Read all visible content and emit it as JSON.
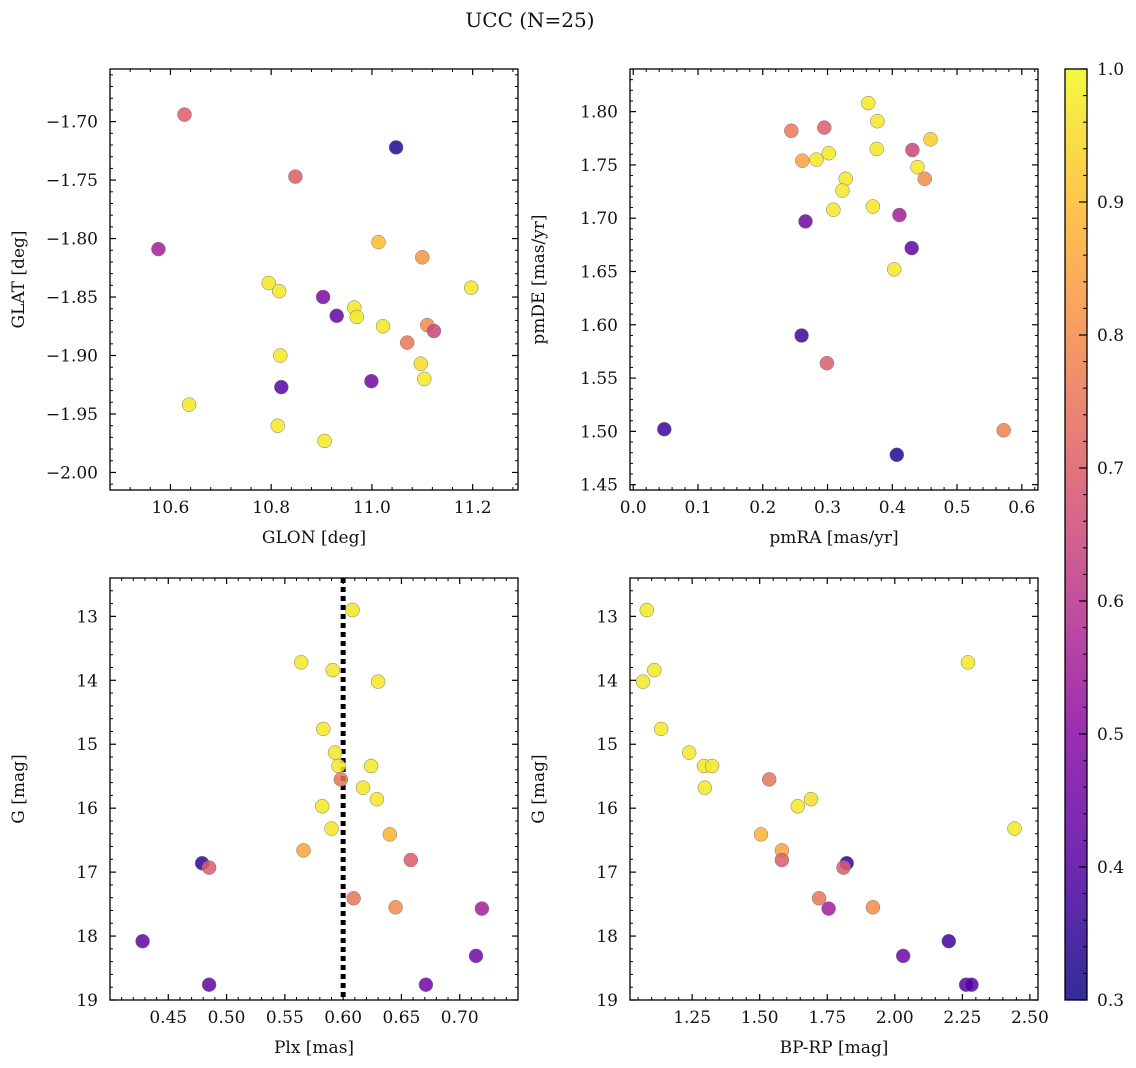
{
  "figure": {
    "title": "UCC (N=25)"
  },
  "colorbar": {
    "min": 0.3,
    "max": 1.0,
    "ticks": [
      0.3,
      0.4,
      0.5,
      0.6,
      0.7,
      0.8,
      0.9,
      1.0
    ],
    "tick_labels": [
      "0.3",
      "0.4",
      "0.5",
      "0.6",
      "0.7",
      "0.8",
      "0.9",
      "1.0"
    ],
    "colormap": "plasma"
  },
  "chart_data": [
    {
      "type": "scatter",
      "id": "glon-glat",
      "xlabel": "GLON [deg]",
      "ylabel": "GLAT [deg]",
      "xlim": [
        10.48,
        11.29
      ],
      "ylim": [
        -2.015,
        -1.655
      ],
      "y_inverted": false,
      "xticks": [
        10.6,
        10.8,
        11.0,
        11.2
      ],
      "xtick_labels": [
        "10.6",
        "10.8",
        "11.0",
        "11.2"
      ],
      "yticks": [
        -1.7,
        -1.75,
        -1.8,
        -1.85,
        -1.9,
        -1.95,
        -2.0
      ],
      "ytick_labels": [
        "−1.70",
        "−1.75",
        "−1.80",
        "−1.85",
        "−1.90",
        "−1.95",
        "−2.00"
      ],
      "points": [
        {
          "x": 10.628,
          "y": -1.694,
          "c": 0.7
        },
        {
          "x": 11.048,
          "y": -1.722,
          "c": 0.33
        },
        {
          "x": 10.848,
          "y": -1.747,
          "c": 0.7
        },
        {
          "x": 10.576,
          "y": -1.809,
          "c": 0.55
        },
        {
          "x": 11.013,
          "y": -1.803,
          "c": 0.9
        },
        {
          "x": 11.1,
          "y": -1.816,
          "c": 0.82
        },
        {
          "x": 10.795,
          "y": -1.838,
          "c": 0.97
        },
        {
          "x": 10.816,
          "y": -1.845,
          "c": 0.97
        },
        {
          "x": 11.197,
          "y": -1.842,
          "c": 0.97
        },
        {
          "x": 10.903,
          "y": -1.85,
          "c": 0.47
        },
        {
          "x": 10.965,
          "y": -1.859,
          "c": 0.97
        },
        {
          "x": 10.93,
          "y": -1.866,
          "c": 0.42
        },
        {
          "x": 10.97,
          "y": -1.867,
          "c": 0.97
        },
        {
          "x": 11.022,
          "y": -1.875,
          "c": 0.97
        },
        {
          "x": 11.11,
          "y": -1.874,
          "c": 0.8
        },
        {
          "x": 11.123,
          "y": -1.879,
          "c": 0.65
        },
        {
          "x": 11.07,
          "y": -1.889,
          "c": 0.76
        },
        {
          "x": 10.818,
          "y": -1.9,
          "c": 0.97
        },
        {
          "x": 11.097,
          "y": -1.907,
          "c": 0.95
        },
        {
          "x": 10.999,
          "y": -1.922,
          "c": 0.45
        },
        {
          "x": 11.104,
          "y": -1.92,
          "c": 0.97
        },
        {
          "x": 10.82,
          "y": -1.927,
          "c": 0.4
        },
        {
          "x": 10.637,
          "y": -1.942,
          "c": 0.97
        },
        {
          "x": 10.813,
          "y": -1.96,
          "c": 0.97
        },
        {
          "x": 10.906,
          "y": -1.973,
          "c": 0.97
        }
      ]
    },
    {
      "type": "scatter",
      "id": "pmra-pmde",
      "xlabel": "pmRA [mas/yr]",
      "ylabel": "pmDE [mas/yr]",
      "xlim": [
        -0.005,
        0.625
      ],
      "ylim": [
        1.445,
        1.84
      ],
      "y_inverted": false,
      "xticks": [
        0.0,
        0.1,
        0.2,
        0.3,
        0.4,
        0.5,
        0.6
      ],
      "xtick_labels": [
        "0.0",
        "0.1",
        "0.2",
        "0.3",
        "0.4",
        "0.5",
        "0.6"
      ],
      "yticks": [
        1.45,
        1.5,
        1.55,
        1.6,
        1.65,
        1.7,
        1.75,
        1.8
      ],
      "ytick_labels": [
        "1.45",
        "1.50",
        "1.55",
        "1.60",
        "1.65",
        "1.70",
        "1.75",
        "1.80"
      ],
      "points": [
        {
          "x": 0.363,
          "y": 1.808,
          "c": 0.97
        },
        {
          "x": 0.377,
          "y": 1.791,
          "c": 0.97
        },
        {
          "x": 0.295,
          "y": 1.785,
          "c": 0.7
        },
        {
          "x": 0.244,
          "y": 1.782,
          "c": 0.76
        },
        {
          "x": 0.459,
          "y": 1.774,
          "c": 0.93
        },
        {
          "x": 0.376,
          "y": 1.765,
          "c": 0.97
        },
        {
          "x": 0.431,
          "y": 1.764,
          "c": 0.65
        },
        {
          "x": 0.302,
          "y": 1.761,
          "c": 0.97
        },
        {
          "x": 0.283,
          "y": 1.755,
          "c": 0.97
        },
        {
          "x": 0.261,
          "y": 1.754,
          "c": 0.85
        },
        {
          "x": 0.439,
          "y": 1.748,
          "c": 0.97
        },
        {
          "x": 0.45,
          "y": 1.737,
          "c": 0.8
        },
        {
          "x": 0.328,
          "y": 1.737,
          "c": 0.97
        },
        {
          "x": 0.323,
          "y": 1.726,
          "c": 0.97
        },
        {
          "x": 0.37,
          "y": 1.711,
          "c": 0.97
        },
        {
          "x": 0.309,
          "y": 1.708,
          "c": 0.97
        },
        {
          "x": 0.411,
          "y": 1.703,
          "c": 0.55
        },
        {
          "x": 0.266,
          "y": 1.697,
          "c": 0.45
        },
        {
          "x": 0.43,
          "y": 1.672,
          "c": 0.42
        },
        {
          "x": 0.403,
          "y": 1.652,
          "c": 0.97
        },
        {
          "x": 0.26,
          "y": 1.59,
          "c": 0.37
        },
        {
          "x": 0.299,
          "y": 1.564,
          "c": 0.7
        },
        {
          "x": 0.048,
          "y": 1.502,
          "c": 0.37
        },
        {
          "x": 0.572,
          "y": 1.501,
          "c": 0.78
        },
        {
          "x": 0.407,
          "y": 1.478,
          "c": 0.33
        }
      ]
    },
    {
      "type": "scatter",
      "id": "plx-g",
      "xlabel": "Plx [mas]",
      "ylabel": "G [mag]",
      "xlim": [
        0.4,
        0.75
      ],
      "ylim": [
        12.4,
        19.0
      ],
      "y_inverted": true,
      "xticks": [
        0.45,
        0.5,
        0.55,
        0.6,
        0.65,
        0.7
      ],
      "xtick_labels": [
        "0.45",
        "0.50",
        "0.55",
        "0.60",
        "0.65",
        "0.70"
      ],
      "yticks": [
        13,
        14,
        15,
        16,
        17,
        18,
        19
      ],
      "ytick_labels": [
        "13",
        "14",
        "15",
        "16",
        "17",
        "18",
        "19"
      ],
      "vline": 0.6,
      "points": [
        {
          "x": 0.608,
          "y": 12.9,
          "c": 0.97
        },
        {
          "x": 0.564,
          "y": 13.72,
          "c": 0.97
        },
        {
          "x": 0.591,
          "y": 13.84,
          "c": 0.97
        },
        {
          "x": 0.63,
          "y": 14.02,
          "c": 0.97
        },
        {
          "x": 0.583,
          "y": 14.76,
          "c": 0.97
        },
        {
          "x": 0.593,
          "y": 15.13,
          "c": 0.97
        },
        {
          "x": 0.596,
          "y": 15.34,
          "c": 0.97
        },
        {
          "x": 0.624,
          "y": 15.34,
          "c": 0.97
        },
        {
          "x": 0.598,
          "y": 15.55,
          "c": 0.75
        },
        {
          "x": 0.617,
          "y": 15.68,
          "c": 0.97
        },
        {
          "x": 0.629,
          "y": 15.86,
          "c": 0.97
        },
        {
          "x": 0.582,
          "y": 15.97,
          "c": 0.97
        },
        {
          "x": 0.59,
          "y": 16.32,
          "c": 0.97
        },
        {
          "x": 0.64,
          "y": 16.41,
          "c": 0.88
        },
        {
          "x": 0.566,
          "y": 16.66,
          "c": 0.85
        },
        {
          "x": 0.658,
          "y": 16.81,
          "c": 0.7
        },
        {
          "x": 0.479,
          "y": 16.86,
          "c": 0.35
        },
        {
          "x": 0.485,
          "y": 16.93,
          "c": 0.7
        },
        {
          "x": 0.609,
          "y": 17.41,
          "c": 0.75
        },
        {
          "x": 0.645,
          "y": 17.55,
          "c": 0.8
        },
        {
          "x": 0.719,
          "y": 17.57,
          "c": 0.55
        },
        {
          "x": 0.428,
          "y": 18.08,
          "c": 0.42
        },
        {
          "x": 0.714,
          "y": 18.31,
          "c": 0.45
        },
        {
          "x": 0.485,
          "y": 18.76,
          "c": 0.42
        },
        {
          "x": 0.671,
          "y": 18.76,
          "c": 0.45
        }
      ]
    },
    {
      "type": "scatter",
      "id": "bprp-g",
      "xlabel": "BP-RP [mag]",
      "ylabel": "G [mag]",
      "xlim": [
        1.02,
        2.53
      ],
      "ylim": [
        12.4,
        19.0
      ],
      "y_inverted": true,
      "xticks": [
        1.25,
        1.5,
        1.75,
        2.0,
        2.25,
        2.5
      ],
      "xtick_labels": [
        "1.25",
        "1.50",
        "1.75",
        "2.00",
        "2.25",
        "2.50"
      ],
      "yticks": [
        13,
        14,
        15,
        16,
        17,
        18,
        19
      ],
      "ytick_labels": [
        "13",
        "14",
        "15",
        "16",
        "17",
        "18",
        "19"
      ],
      "points": [
        {
          "x": 1.082,
          "y": 12.9,
          "c": 0.97
        },
        {
          "x": 2.271,
          "y": 13.72,
          "c": 0.97
        },
        {
          "x": 1.11,
          "y": 13.84,
          "c": 0.97
        },
        {
          "x": 1.068,
          "y": 14.02,
          "c": 0.97
        },
        {
          "x": 1.135,
          "y": 14.76,
          "c": 0.97
        },
        {
          "x": 1.239,
          "y": 15.13,
          "c": 0.97
        },
        {
          "x": 1.294,
          "y": 15.34,
          "c": 0.97
        },
        {
          "x": 1.324,
          "y": 15.34,
          "c": 0.97
        },
        {
          "x": 1.535,
          "y": 15.55,
          "c": 0.75
        },
        {
          "x": 1.297,
          "y": 15.68,
          "c": 0.97
        },
        {
          "x": 1.69,
          "y": 15.86,
          "c": 0.95
        },
        {
          "x": 1.641,
          "y": 15.97,
          "c": 0.97
        },
        {
          "x": 2.443,
          "y": 16.32,
          "c": 0.97
        },
        {
          "x": 1.505,
          "y": 16.41,
          "c": 0.88
        },
        {
          "x": 1.582,
          "y": 16.66,
          "c": 0.85
        },
        {
          "x": 1.582,
          "y": 16.81,
          "c": 0.7
        },
        {
          "x": 1.822,
          "y": 16.86,
          "c": 0.35
        },
        {
          "x": 1.81,
          "y": 16.93,
          "c": 0.7
        },
        {
          "x": 1.72,
          "y": 17.41,
          "c": 0.75
        },
        {
          "x": 1.919,
          "y": 17.55,
          "c": 0.8
        },
        {
          "x": 1.755,
          "y": 17.57,
          "c": 0.55
        },
        {
          "x": 2.2,
          "y": 18.08,
          "c": 0.37
        },
        {
          "x": 2.031,
          "y": 18.31,
          "c": 0.45
        },
        {
          "x": 2.264,
          "y": 18.76,
          "c": 0.4
        },
        {
          "x": 2.284,
          "y": 18.76,
          "c": 0.4
        }
      ]
    }
  ]
}
